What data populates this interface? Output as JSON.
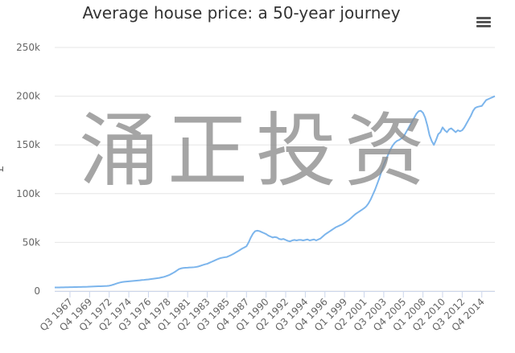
{
  "chart_data": {
    "type": "line",
    "title": "Average house price: a 50-year journey",
    "yaxis_title": "£",
    "watermark": "涌正投资",
    "color": "#7cb5ec",
    "grid": true,
    "ylim": [
      0,
      250000
    ],
    "yticks": [
      0,
      {
        "value": 50000,
        "label": "50k"
      },
      {
        "value": 100000,
        "label": "100k"
      },
      {
        "value": 150000,
        "label": "150k"
      },
      {
        "value": 200000,
        "label": "200k"
      },
      {
        "value": 250000,
        "label": "250k"
      }
    ],
    "categories": [
      null,
      null,
      null,
      null,
      null,
      null,
      null,
      "Q3 1967",
      null,
      null,
      null,
      null,
      null,
      null,
      null,
      null,
      "Q4 1969",
      null,
      null,
      null,
      null,
      null,
      null,
      null,
      null,
      "Q1 1972",
      null,
      null,
      null,
      null,
      null,
      null,
      null,
      null,
      "Q2 1974",
      null,
      null,
      null,
      null,
      null,
      null,
      null,
      null,
      "Q3 1976",
      null,
      null,
      null,
      null,
      null,
      null,
      null,
      null,
      "Q4 1978",
      null,
      null,
      null,
      null,
      null,
      null,
      null,
      null,
      "Q1 1981",
      null,
      null,
      null,
      null,
      null,
      null,
      null,
      null,
      "Q2 1983",
      null,
      null,
      null,
      null,
      null,
      null,
      null,
      null,
      "Q3 1985",
      null,
      null,
      null,
      null,
      null,
      null,
      null,
      null,
      "Q4 1987",
      null,
      null,
      null,
      null,
      null,
      null,
      null,
      null,
      "Q1 1990",
      null,
      null,
      null,
      null,
      null,
      null,
      null,
      null,
      "Q2 1992",
      null,
      null,
      null,
      null,
      null,
      null,
      null,
      null,
      "Q3 1994",
      null,
      null,
      null,
      null,
      null,
      null,
      null,
      null,
      "Q4 1996",
      null,
      null,
      null,
      null,
      null,
      null,
      null,
      null,
      "Q1 1999",
      null,
      null,
      null,
      null,
      null,
      null,
      null,
      null,
      "Q2 2001",
      null,
      null,
      null,
      null,
      null,
      null,
      null,
      null,
      "Q3 2003",
      null,
      null,
      null,
      null,
      null,
      null,
      null,
      null,
      "Q4 2005",
      null,
      null,
      null,
      null,
      null,
      null,
      null,
      null,
      "Q1 2008",
      null,
      null,
      null,
      null,
      null,
      null,
      null,
      null,
      "Q2 2010",
      null,
      null,
      null,
      null,
      null,
      null,
      null,
      null,
      "Q3 2012",
      null,
      null,
      null,
      null,
      null,
      null,
      null,
      null,
      "Q4 2014",
      null,
      null,
      null,
      null,
      null,
      null
    ],
    "values": [
      3700,
      3700,
      3750,
      3800,
      3850,
      3900,
      3950,
      4000,
      4050,
      4100,
      4150,
      4200,
      4250,
      4300,
      4350,
      4400,
      4500,
      4600,
      4700,
      4800,
      4900,
      5000,
      5100,
      5200,
      5300,
      5500,
      6000,
      6700,
      7500,
      8200,
      8800,
      9300,
      9600,
      9800,
      10000,
      10200,
      10400,
      10600,
      10800,
      11000,
      11300,
      11500,
      11800,
      12000,
      12300,
      12600,
      12900,
      13200,
      13500,
      14000,
      14500,
      15200,
      16000,
      17000,
      18200,
      19500,
      21000,
      22500,
      23300,
      23700,
      23900,
      24000,
      24200,
      24300,
      24500,
      24800,
      25300,
      26000,
      26800,
      27500,
      28000,
      29000,
      30000,
      31000,
      32000,
      33000,
      33800,
      34300,
      34700,
      35000,
      36000,
      37000,
      38200,
      39500,
      40800,
      42200,
      43600,
      44800,
      46000,
      50000,
      55000,
      59000,
      61500,
      62000,
      61500,
      60500,
      59500,
      58500,
      57000,
      56000,
      55000,
      55500,
      55000,
      53500,
      53000,
      53500,
      52500,
      51500,
      51000,
      52000,
      52500,
      52000,
      52500,
      52500,
      52000,
      52500,
      53000,
      52000,
      52500,
      53000,
      52000,
      53000,
      54000,
      56000,
      58000,
      59500,
      61000,
      62500,
      64000,
      65500,
      66500,
      67500,
      68500,
      70000,
      71500,
      73000,
      75000,
      77000,
      79000,
      80500,
      82000,
      83500,
      85000,
      87000,
      90000,
      94000,
      99000,
      104000,
      110000,
      116000,
      123000,
      130000,
      135000,
      140000,
      145000,
      149000,
      152000,
      154000,
      155000,
      156500,
      158000,
      162000,
      166000,
      170000,
      174000,
      178000,
      182000,
      184500,
      185000,
      183000,
      178000,
      170000,
      160000,
      154000,
      150000,
      155000,
      161000,
      163000,
      168000,
      165000,
      163000,
      166000,
      167000,
      165000,
      163000,
      165000,
      164000,
      165000,
      168000,
      172000,
      176000,
      180000,
      185000,
      188000,
      189000,
      189500,
      190000,
      193000,
      196000,
      197000,
      198000,
      199000,
      200000
    ]
  }
}
